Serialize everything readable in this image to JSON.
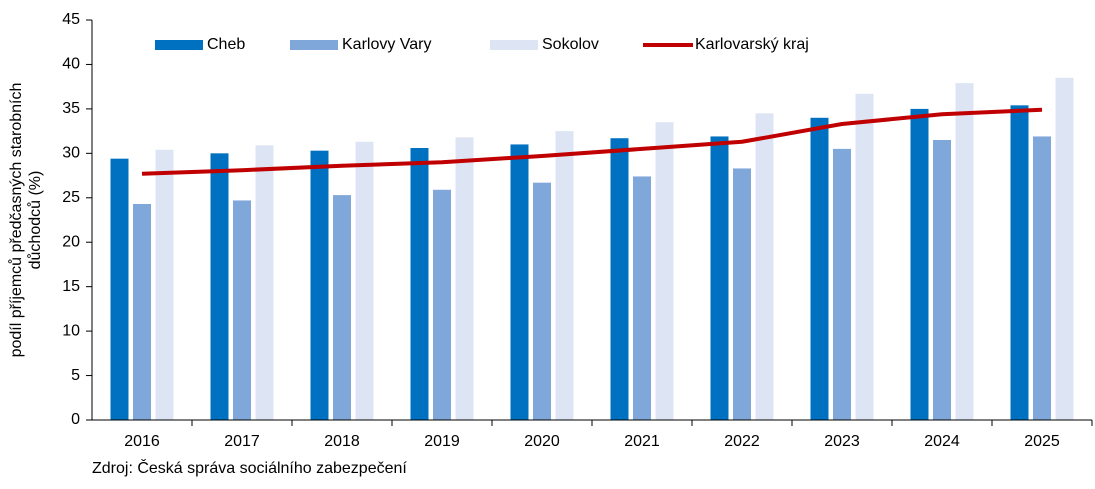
{
  "chart_data": {
    "type": "bar",
    "ylabel": [
      "podíl příjemců předčasných starobních",
      "důchodců (%)"
    ],
    "note": "Zdroj: Česká správa sociálního zabezpečení",
    "categories": [
      "2016",
      "2017",
      "2018",
      "2019",
      "2020",
      "2021",
      "2022",
      "2023",
      "2024",
      "2025"
    ],
    "series": [
      {
        "name": "Cheb",
        "type": "bar",
        "color": "#0070c0",
        "values": [
          29.4,
          30.0,
          30.3,
          30.6,
          31.0,
          31.7,
          31.9,
          34.0,
          35.0,
          35.4
        ]
      },
      {
        "name": "Karlovy Vary",
        "type": "bar",
        "color": "#7fa7d9",
        "values": [
          24.3,
          24.7,
          25.3,
          25.9,
          26.7,
          27.4,
          28.3,
          30.5,
          31.5,
          31.9
        ]
      },
      {
        "name": "Sokolov",
        "type": "bar",
        "color": "#dde4f4",
        "values": [
          30.4,
          30.9,
          31.3,
          31.8,
          32.5,
          33.5,
          34.5,
          36.7,
          37.9,
          38.5
        ]
      },
      {
        "name": "Karlovarský kraj",
        "type": "line",
        "color": "#c00000",
        "values": [
          27.7,
          28.1,
          28.6,
          29.0,
          29.7,
          30.5,
          31.3,
          33.3,
          34.4,
          34.9
        ]
      }
    ],
    "ylim": [
      0,
      45
    ],
    "yticks": [
      0,
      5,
      10,
      15,
      20,
      25,
      30,
      35,
      40,
      45
    ],
    "legend": "top"
  }
}
